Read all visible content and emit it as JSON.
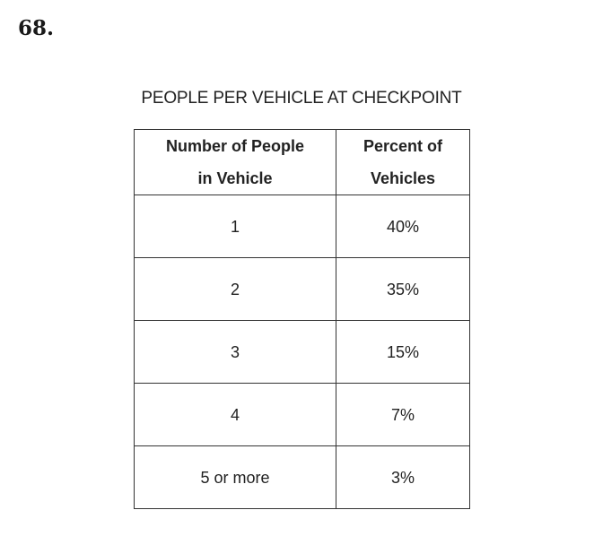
{
  "question_number": "68.",
  "chart_data": {
    "type": "table",
    "title": "PEOPLE PER VEHICLE AT CHECKPOINT",
    "columns": [
      "Number of People in Vehicle",
      "Percent of Vehicles"
    ],
    "header": [
      [
        "Number of People",
        "in Vehicle"
      ],
      [
        "Percent of",
        "Vehicles"
      ]
    ],
    "rows": [
      [
        "1",
        "40%"
      ],
      [
        "2",
        "35%"
      ],
      [
        "3",
        "15%"
      ],
      [
        "4",
        "7%"
      ],
      [
        "5 or more",
        "3%"
      ]
    ]
  }
}
